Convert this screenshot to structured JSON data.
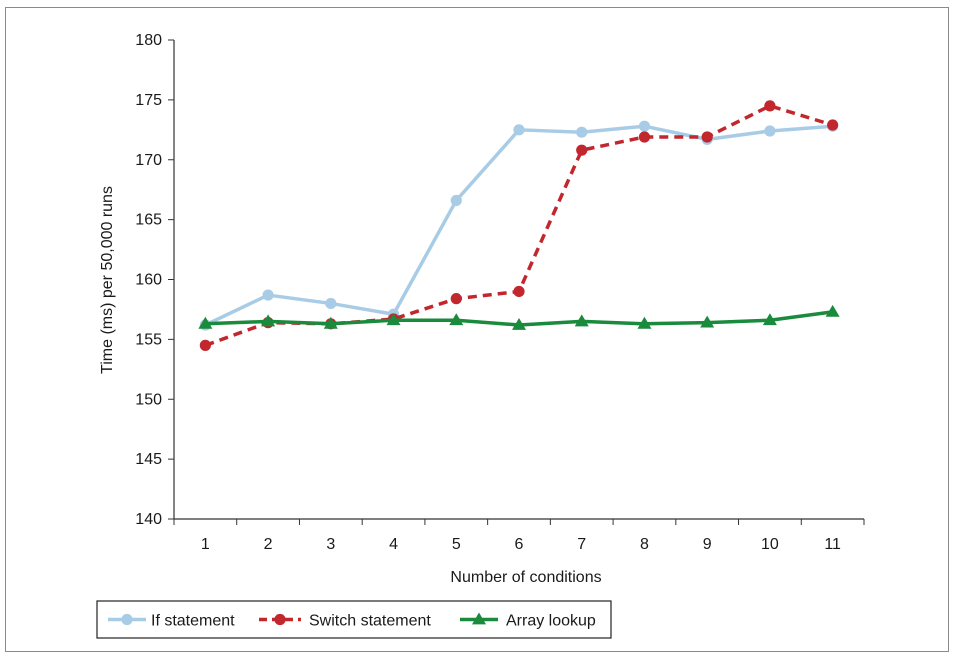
{
  "chart_data": {
    "type": "line",
    "title": "",
    "xlabel": "Number of conditions",
    "ylabel": "Time (ms) per 50,000 runs",
    "x": [
      1,
      2,
      3,
      4,
      5,
      6,
      7,
      8,
      9,
      10,
      11
    ],
    "xlim": [
      0.5,
      11.5
    ],
    "ylim": [
      140,
      180
    ],
    "yticks": [
      140,
      145,
      150,
      155,
      160,
      165,
      170,
      175,
      180
    ],
    "grid": false,
    "legend_position": "bottom",
    "series": [
      {
        "name": "If statement",
        "color": "#a9cce6",
        "line_style": "solid",
        "marker": "circle",
        "values": [
          156.2,
          158.7,
          158.0,
          157.1,
          166.6,
          172.5,
          172.3,
          172.8,
          171.7,
          172.4,
          172.8
        ]
      },
      {
        "name": "Switch statement",
        "color": "#c1272d",
        "line_style": "dashed",
        "marker": "circle",
        "values": [
          154.5,
          156.4,
          156.3,
          156.7,
          158.4,
          159.0,
          170.8,
          171.9,
          171.9,
          174.5,
          172.9
        ]
      },
      {
        "name": "Array lookup",
        "color": "#1a8a3c",
        "line_style": "solid",
        "marker": "triangle",
        "values": [
          156.3,
          156.5,
          156.3,
          156.6,
          156.6,
          156.2,
          156.5,
          156.3,
          156.4,
          156.6,
          157.3
        ]
      }
    ]
  }
}
